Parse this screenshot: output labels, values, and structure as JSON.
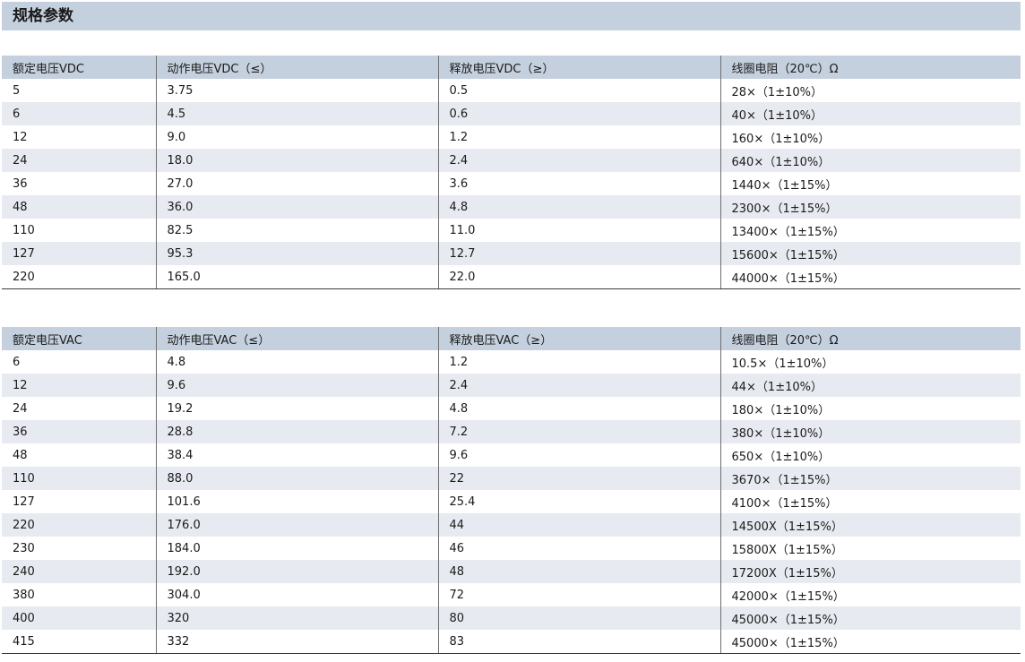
{
  "title": "规格参数",
  "dc_table": {
    "headers": [
      "额定电压VDC",
      "动作电压VDC（≤）",
      "释放电压VDC（≥）",
      "线圈电阻（20℃）Ω"
    ],
    "rows": [
      [
        "5",
        "3.75",
        "0.5",
        "28×（1±10%）"
      ],
      [
        "6",
        "4.5",
        "0.6",
        "40×（1±10%）"
      ],
      [
        "12",
        "9.0",
        "1.2",
        "160×（1±10%）"
      ],
      [
        "24",
        "18.0",
        "2.4",
        "640×（1±10%）"
      ],
      [
        "36",
        "27.0",
        "3.6",
        "1440×（1±15%）"
      ],
      [
        "48",
        "36.0",
        "4.8",
        "2300×（1±15%）"
      ],
      [
        "110",
        "82.5",
        "11.0",
        "13400×（1±15%）"
      ],
      [
        "127",
        "95.3",
        "12.7",
        "15600×（1±15%）"
      ],
      [
        "220",
        "165.0",
        "22.0",
        "44000×（1±15%）"
      ]
    ]
  },
  "ac_table": {
    "headers": [
      "额定电压VAC",
      "动作电压VAC（≤）",
      "释放电压VAC（≥）",
      "线圈电阻（20℃）Ω"
    ],
    "rows": [
      [
        "6",
        "4.8",
        "1.2",
        "10.5×（1±10%）"
      ],
      [
        "12",
        "9.6",
        "2.4",
        "44×（1±10%）"
      ],
      [
        "24",
        "19.2",
        "4.8",
        "180×（1±10%）"
      ],
      [
        "36",
        "28.8",
        "7.2",
        "380×（1±10%）"
      ],
      [
        "48",
        "38.4",
        "9.6",
        "650×（1±10%）"
      ],
      [
        "110",
        "88.0",
        "22",
        "3670×（1±15%）"
      ],
      [
        "127",
        "101.6",
        "25.4",
        "4100×（1±15%）"
      ],
      [
        "220",
        "176.0",
        "44",
        "14500X（1±15%）"
      ],
      [
        "230",
        "184.0",
        "46",
        "15800X（1±15%）"
      ],
      [
        "240",
        "192.0",
        "48",
        "17200X（1±15%）"
      ],
      [
        "380",
        "304.0",
        "72",
        "42000×（1±15%）"
      ],
      [
        "400",
        "320",
        "80",
        "45000×（1±15%）"
      ],
      [
        "415",
        "332",
        "83",
        "45000×（1±15%）"
      ]
    ]
  }
}
